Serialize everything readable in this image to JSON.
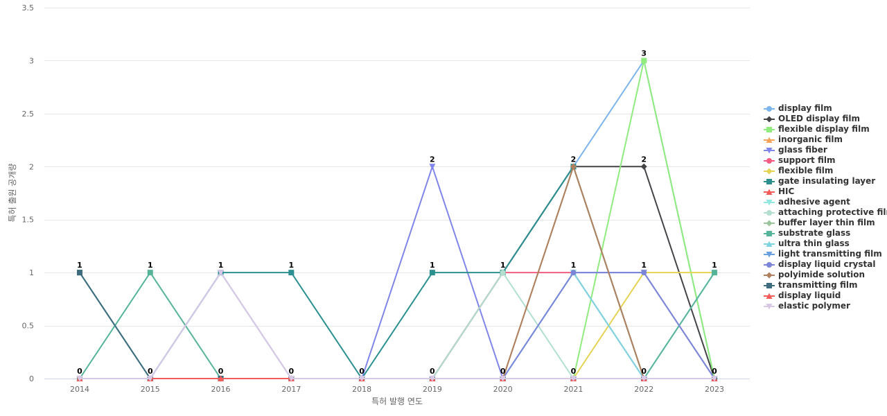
{
  "chart_data": {
    "type": "line",
    "xlabel": "특허 발행 연도",
    "ylabel": "특허 출원 공개량",
    "x": [
      2014,
      2015,
      2016,
      2017,
      2018,
      2019,
      2020,
      2021,
      2022,
      2023
    ],
    "ylim": [
      0,
      3.5
    ],
    "yticks": [
      0,
      0.5,
      1,
      1.5,
      2,
      2.5,
      3,
      3.5
    ],
    "grid": true,
    "legend_position": "right",
    "data_labels": [
      {
        "x": 2014,
        "values": [
          "1",
          "0"
        ]
      },
      {
        "x": 2015,
        "values": [
          "1",
          "0"
        ]
      },
      {
        "x": 2016,
        "values": [
          "1",
          "0"
        ]
      },
      {
        "x": 2017,
        "values": [
          "1",
          "0"
        ]
      },
      {
        "x": 2018,
        "values": [
          "0"
        ]
      },
      {
        "x": 2019,
        "values": [
          "2",
          "1",
          "0"
        ]
      },
      {
        "x": 2020,
        "values": [
          "1",
          "0"
        ]
      },
      {
        "x": 2021,
        "values": [
          "2",
          "1",
          "0"
        ]
      },
      {
        "x": 2022,
        "values": [
          "3",
          "2",
          "1",
          "0"
        ]
      },
      {
        "x": 2023,
        "values": [
          "1",
          "0"
        ]
      }
    ],
    "series": [
      {
        "name": "display film",
        "color": "#7cb5ec",
        "marker": "circle",
        "values": [
          0,
          0,
          0,
          0,
          0,
          0,
          1,
          2,
          3,
          0
        ]
      },
      {
        "name": "OLED display film",
        "color": "#434348",
        "marker": "diamond",
        "values": [
          0,
          0,
          0,
          0,
          0,
          0,
          1,
          2,
          2,
          0
        ]
      },
      {
        "name": "flexible display film",
        "color": "#90ed7d",
        "marker": "square",
        "values": [
          0,
          0,
          0,
          0,
          0,
          0,
          0,
          0,
          3,
          0
        ]
      },
      {
        "name": "inorganic film",
        "color": "#f7a35c",
        "marker": "triangle",
        "values": [
          0,
          0,
          0,
          0,
          0,
          0,
          0,
          2,
          0,
          0
        ]
      },
      {
        "name": "glass fiber",
        "color": "#8085e9",
        "marker": "triangle-down",
        "values": [
          0,
          0,
          0,
          0,
          0,
          2,
          0,
          1,
          1,
          0
        ]
      },
      {
        "name": "support film",
        "color": "#f15c80",
        "marker": "circle",
        "values": [
          0,
          0,
          0,
          0,
          0,
          0,
          1,
          1,
          0,
          0
        ]
      },
      {
        "name": "flexible film",
        "color": "#e4d354",
        "marker": "diamond",
        "values": [
          0,
          0,
          0,
          0,
          0,
          0,
          0,
          0,
          1,
          1
        ]
      },
      {
        "name": "gate insulating layer",
        "color": "#2b908f",
        "marker": "square",
        "values": [
          1,
          0,
          1,
          1,
          0,
          1,
          1,
          2,
          0,
          0
        ]
      },
      {
        "name": "HIC",
        "color": "#f45b5b",
        "marker": "triangle",
        "values": [
          0,
          0,
          0,
          0,
          0,
          0,
          0,
          0,
          0,
          0
        ]
      },
      {
        "name": "adhesive agent",
        "color": "#91e8e1",
        "marker": "triangle-down",
        "values": [
          0,
          0,
          0,
          0,
          0,
          0,
          0,
          1,
          0,
          1
        ]
      },
      {
        "name": "attaching protective film",
        "color": "#b2dfcf",
        "marker": "circle",
        "values": [
          0,
          0,
          0,
          0,
          0,
          0,
          1,
          0,
          0,
          0
        ]
      },
      {
        "name": "buffer layer thin film",
        "color": "#9bc59c",
        "marker": "diamond",
        "values": [
          0,
          0,
          0,
          0,
          0,
          0,
          0,
          2,
          0,
          0
        ]
      },
      {
        "name": "substrate glass",
        "color": "#55b49a",
        "marker": "square",
        "values": [
          0,
          1,
          0,
          0,
          0,
          0,
          0,
          0,
          0,
          1
        ]
      },
      {
        "name": "ultra thin glass",
        "color": "#7dd3e0",
        "marker": "triangle",
        "values": [
          0,
          0,
          0,
          0,
          0,
          0,
          0,
          1,
          0,
          0
        ]
      },
      {
        "name": "light transmitting film",
        "color": "#6aa0e0",
        "marker": "triangle-down",
        "values": [
          0,
          0,
          1,
          0,
          0,
          0,
          0,
          0,
          0,
          0
        ]
      },
      {
        "name": "display liquid crystal",
        "color": "#7b86d8",
        "marker": "circle",
        "values": [
          0,
          0,
          0,
          0,
          0,
          0,
          0,
          1,
          1,
          0
        ]
      },
      {
        "name": "polyimide solution",
        "color": "#b08060",
        "marker": "diamond",
        "values": [
          0,
          0,
          0,
          0,
          0,
          0,
          0,
          2,
          0,
          0
        ]
      },
      {
        "name": "transmitting film",
        "color": "#3d6d7e",
        "marker": "square",
        "values": [
          1,
          0,
          0,
          0,
          0,
          0,
          0,
          0,
          0,
          0
        ]
      },
      {
        "name": "display liquid",
        "color": "#f45b5b",
        "marker": "triangle",
        "values": [
          0,
          0,
          0,
          0,
          0,
          0,
          0,
          0,
          0,
          0
        ]
      },
      {
        "name": "elastic polymer",
        "color": "#d8c8e6",
        "marker": "triangle-down",
        "values": [
          0,
          0,
          1,
          0,
          0,
          0,
          0,
          0,
          0,
          0
        ]
      }
    ]
  }
}
